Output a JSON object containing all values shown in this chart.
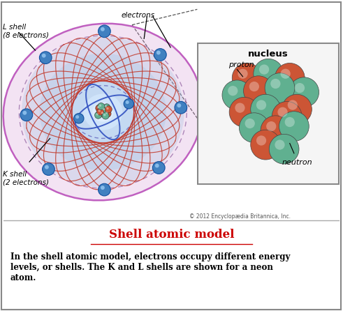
{
  "title": "Shell atomic model",
  "description": "In the shell atomic model, electrons occupy different energy\nlevels, or shells. The K and L shells are shown for a neon\natom.",
  "copyright": "© 2012 Encyclopædia Britannica, Inc.",
  "background_color": "#ffffff",
  "labels": {
    "L_shell": "L shell\n(8 electrons)",
    "K_shell": "K shell\n(2 electrons)",
    "electrons": "electrons",
    "nucleus": "nucleus",
    "proton": "proton",
    "neutron": "neutron"
  },
  "colors": {
    "L_shell_outer": "#c060c0",
    "K_shell_orbit": "#3050c0",
    "electron_color": "#4080c0",
    "electron_edge": "#1050a0",
    "orbit_red": "#c03020",
    "proton_color": "#cc5535",
    "neutron_color": "#60b090",
    "nucleus_box_border": "#888888",
    "title_color": "#cc0000",
    "text_color": "#000000",
    "dashed_line": "#555555"
  }
}
